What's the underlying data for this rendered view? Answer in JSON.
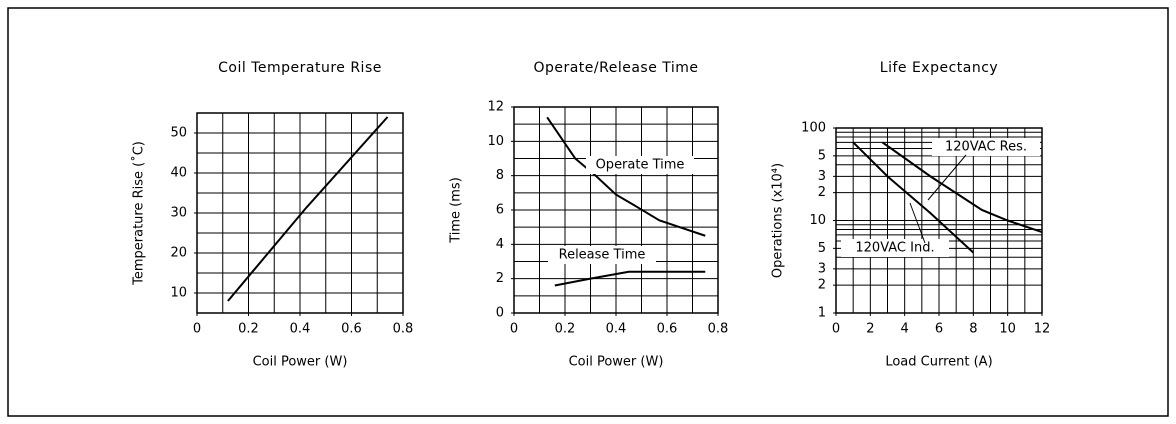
{
  "chart_data": [
    {
      "type": "line",
      "title": "Coil Temperature Rise",
      "xlabel": "Coil Power (W)",
      "ylabel": "Temperature Rise (˚C)",
      "xlim": [
        0,
        0.8
      ],
      "xticks": [
        0,
        0.2,
        0.4,
        0.6,
        0.8
      ],
      "xgrid": [
        0,
        0.1,
        0.2,
        0.3,
        0.4,
        0.5,
        0.6,
        0.7,
        0.8
      ],
      "ylim": [
        5,
        55
      ],
      "yticks": [
        10,
        20,
        30,
        40,
        50
      ],
      "ygrid": [
        5,
        10,
        15,
        20,
        25,
        30,
        35,
        40,
        45,
        50,
        55
      ],
      "grid": true,
      "series": [
        {
          "color": "#000000",
          "x": [
            0.12,
            0.42,
            0.74
          ],
          "values": [
            8,
            31,
            54
          ]
        }
      ]
    },
    {
      "type": "line",
      "title": "Operate/Release Time",
      "xlabel": "Coil Power (W)",
      "ylabel": "Time (ms)",
      "xlim": [
        0,
        0.8
      ],
      "xticks": [
        0,
        0.2,
        0.4,
        0.6,
        0.8
      ],
      "xgrid": [
        0,
        0.1,
        0.2,
        0.3,
        0.4,
        0.5,
        0.6,
        0.7,
        0.8
      ],
      "ylim": [
        0,
        12
      ],
      "yticks": [
        0,
        2,
        4,
        6,
        8,
        10,
        12
      ],
      "ygrid": [
        0,
        1,
        2,
        3,
        4,
        5,
        6,
        7,
        8,
        9,
        10,
        11,
        12
      ],
      "grid": true,
      "series": [
        {
          "name": "Operate Time",
          "color": "#000000",
          "x": [
            0.13,
            0.24,
            0.32,
            0.4,
            0.48,
            0.57,
            0.65,
            0.75
          ],
          "values": [
            11.4,
            9,
            8,
            6.9,
            6.2,
            5.4,
            5,
            4.5
          ]
        },
        {
          "name": "Release Time",
          "color": "#000000",
          "x": [
            0.16,
            0.3,
            0.45,
            0.75
          ],
          "values": [
            1.6,
            2,
            2.4,
            2.4
          ]
        }
      ]
    },
    {
      "type": "line",
      "title": "Life Expectancy",
      "xlabel": "Load Current (A)",
      "ylabel": "Operations (x10⁴)",
      "xlim": [
        0,
        12
      ],
      "xticks": [
        0,
        2,
        4,
        6,
        8,
        10,
        12
      ],
      "xgrid": [
        0,
        1,
        2,
        3,
        4,
        5,
        6,
        7,
        8,
        9,
        10,
        11,
        12
      ],
      "ylim": [
        1,
        100
      ],
      "ylog": true,
      "yticks": [
        1,
        2,
        3,
        5,
        10,
        {
          "value": 20,
          "label": "2"
        },
        {
          "value": 30,
          "label": "3"
        },
        {
          "value": 50,
          "label": "5"
        },
        100
      ],
      "ygrid": [
        1,
        2,
        3,
        4,
        5,
        6,
        7,
        8,
        9,
        10,
        20,
        30,
        40,
        50,
        60,
        70,
        80,
        90,
        100
      ],
      "grid": true,
      "series": [
        {
          "name": "120VAC Res.",
          "color": "#000000",
          "x": [
            2.7,
            5.5,
            8.5,
            10,
            12
          ],
          "values": [
            70,
            30,
            13,
            10,
            7.5
          ]
        },
        {
          "name": "120VAC Ind.",
          "color": "#000000",
          "x": [
            1,
            3,
            5.5,
            8
          ],
          "values": [
            70,
            30,
            12,
            4.5
          ]
        }
      ]
    }
  ]
}
